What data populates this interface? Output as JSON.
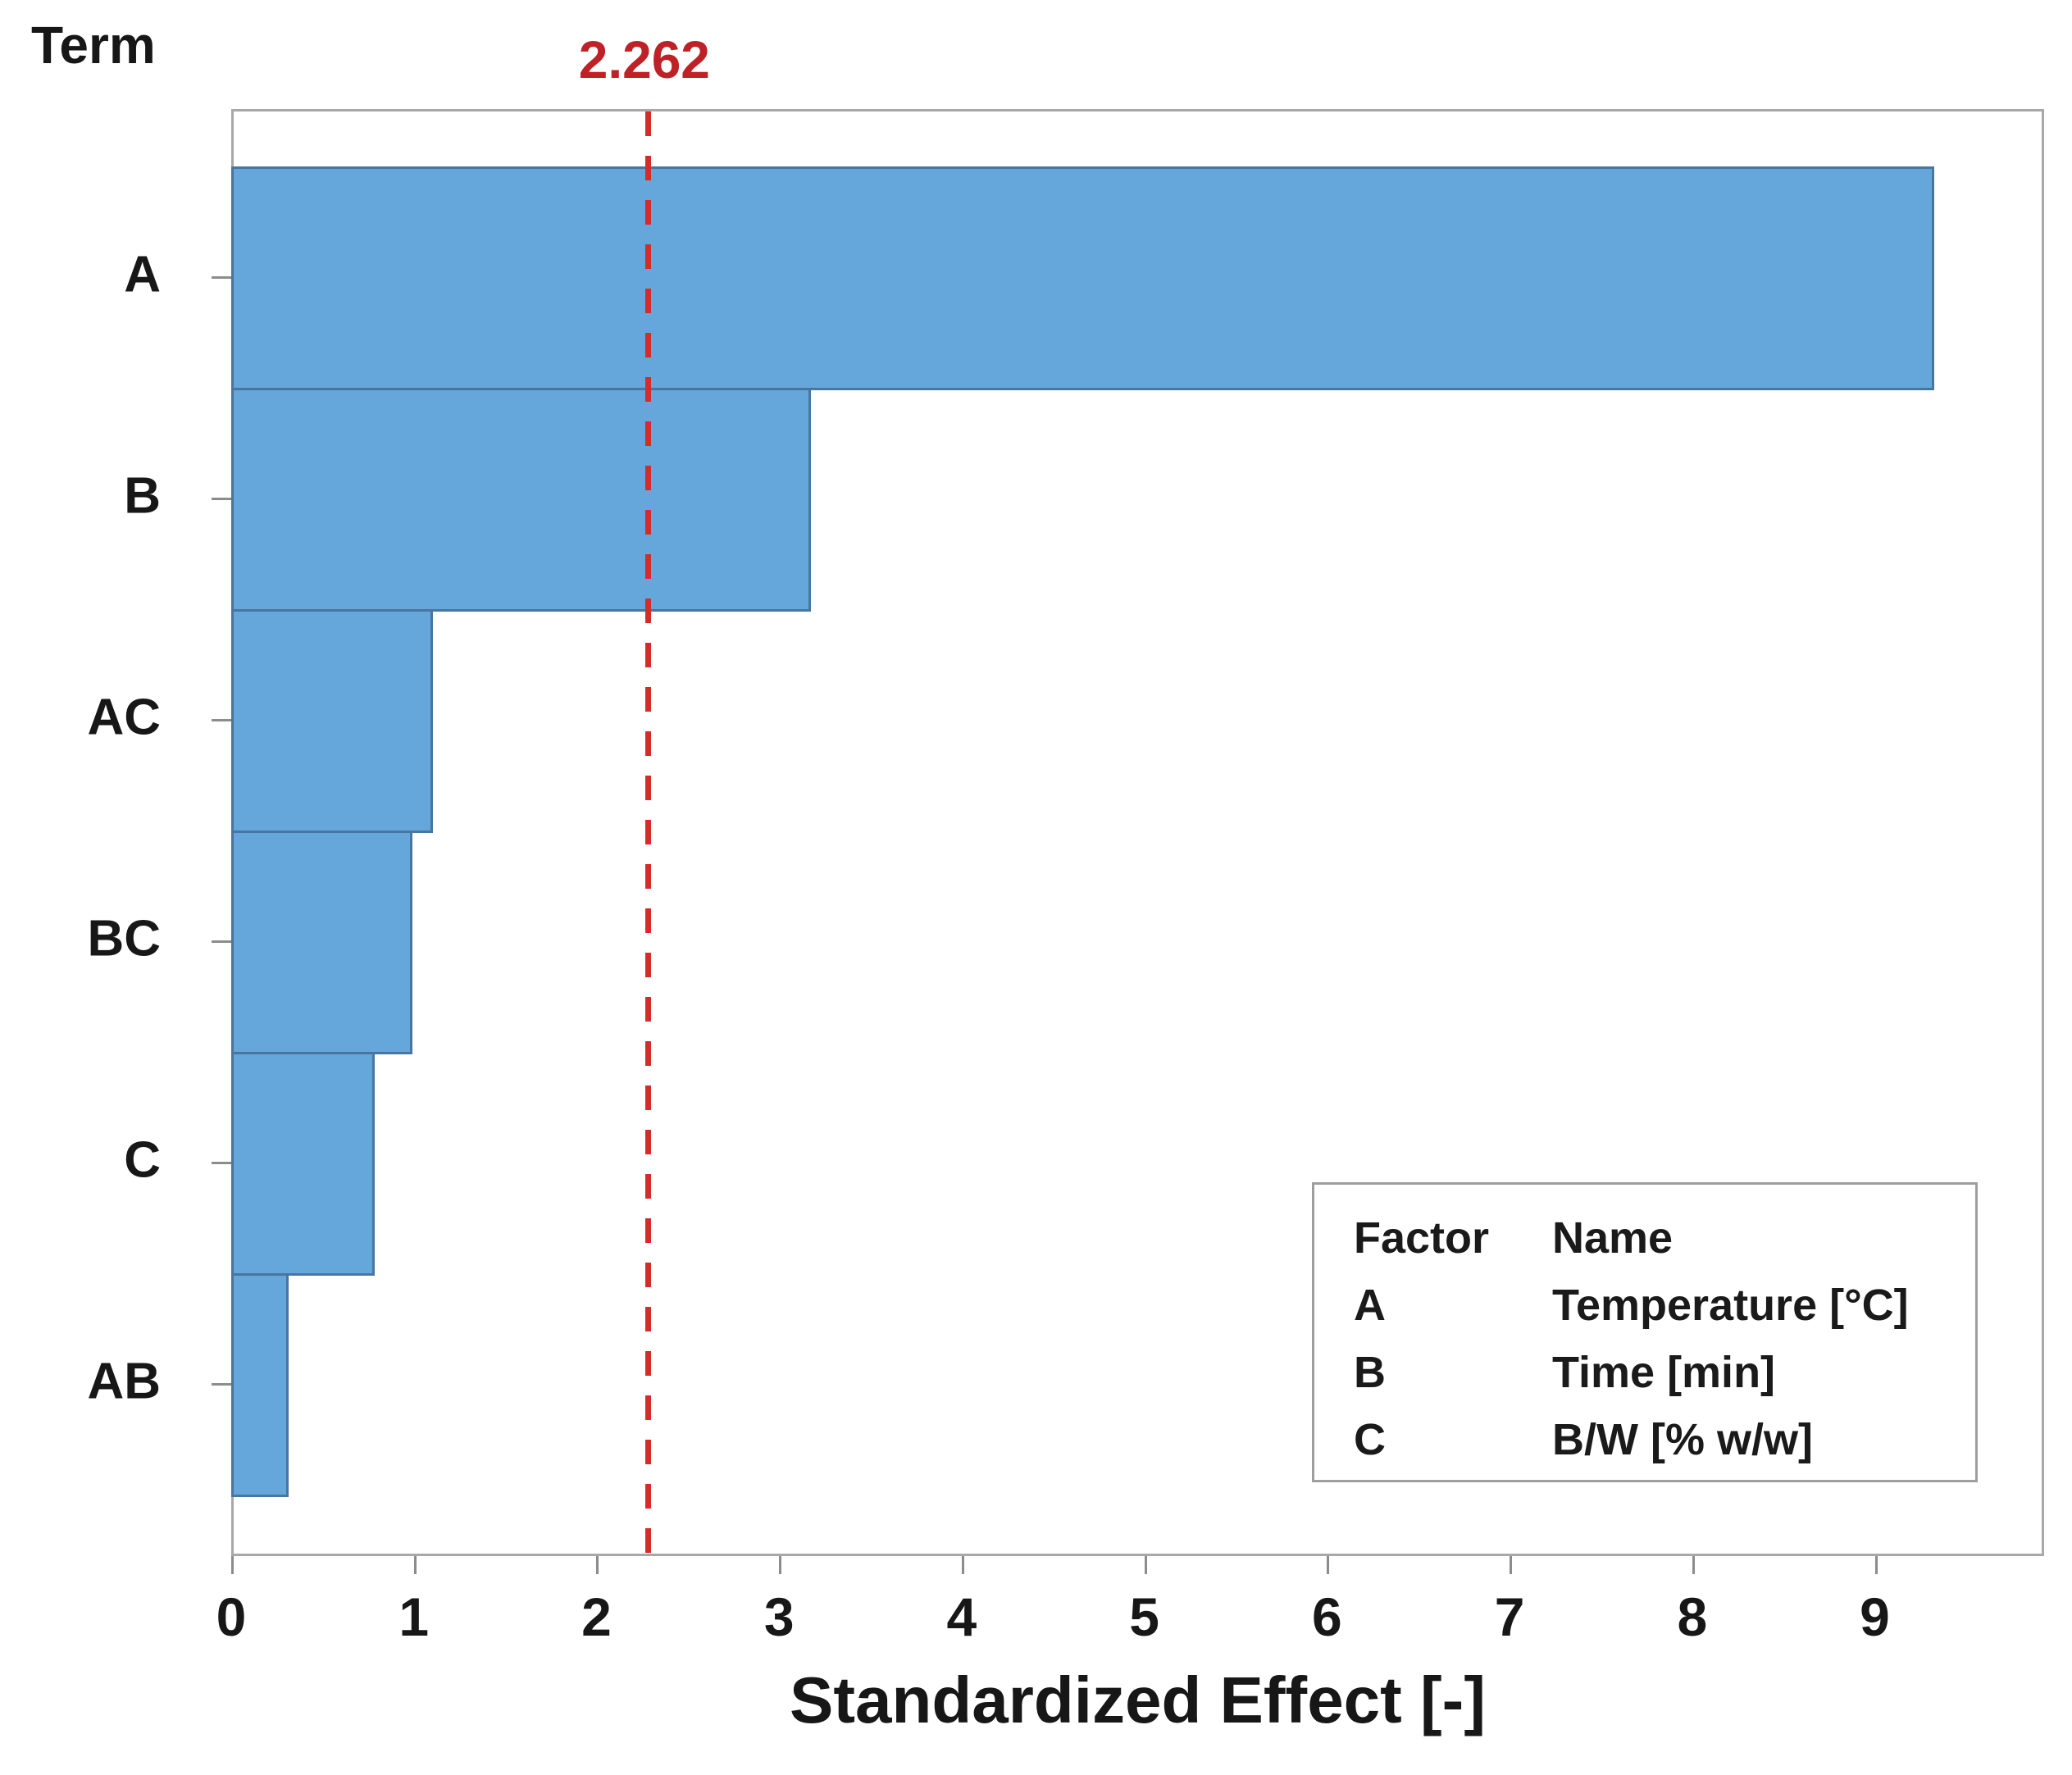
{
  "figure": {
    "y_axis_title": "Term",
    "x_axis_title": "Standardized Effect [-]"
  },
  "chart_data": {
    "type": "bar",
    "orientation": "horizontal",
    "title": "",
    "categories": [
      "A",
      "B",
      "AC",
      "BC",
      "C",
      "AB"
    ],
    "values": [
      9.31,
      3.16,
      1.09,
      0.98,
      0.77,
      0.3
    ],
    "xlabel": "Standardized Effect [-]",
    "ylabel": "Term",
    "xlim": [
      0,
      9.9
    ],
    "x_ticks": [
      0,
      1,
      2,
      3,
      4,
      5,
      6,
      7,
      8,
      9
    ],
    "grid": false,
    "reference_line": {
      "value": 2.262,
      "label": "2.262",
      "style": "dashed"
    },
    "legend_position": "bottom-right"
  },
  "legend": {
    "header": {
      "factor": "Factor",
      "name": "Name"
    },
    "rows": [
      {
        "factor": "A",
        "name": "Temperature [°C]"
      },
      {
        "factor": "B",
        "name": "Time [min]"
      },
      {
        "factor": "C",
        "name": "B/W [% w/w]"
      }
    ]
  },
  "colors": {
    "bar_fill": "#65a7db",
    "bar_stroke": "#4a759e",
    "reference_line": "#d42b2b",
    "reference_label": "#be2126",
    "plot_border": "#a8a8a8",
    "tick": "#8c8c8c",
    "text": "#171717"
  }
}
